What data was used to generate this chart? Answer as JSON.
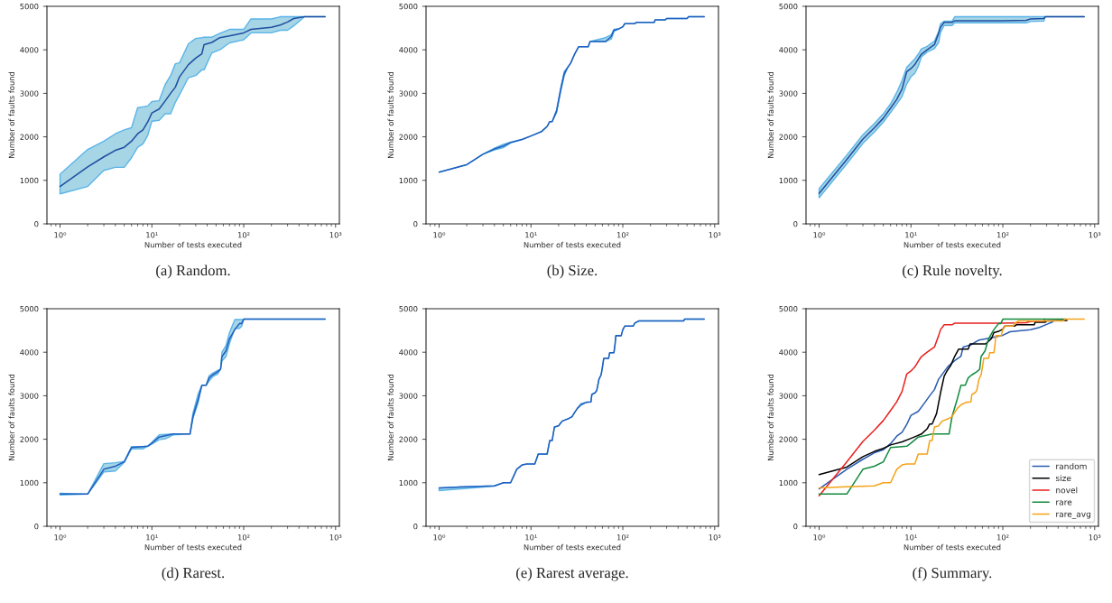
{
  "chart_data": [
    {
      "type": "line",
      "xlabel": "Number of tests executed",
      "ylabel": "Number of faults found",
      "log": "x",
      "xlim": [
        0.72,
        1100
      ],
      "ylim": [
        0,
        5000
      ],
      "xticks": [
        {
          "value": 1,
          "label": "10⁰"
        },
        {
          "value": 10,
          "label": "10¹"
        },
        {
          "value": 100,
          "label": "10²"
        },
        {
          "value": 1000,
          "label": "10³"
        }
      ],
      "yticks": [
        0,
        1000,
        2000,
        3000,
        4000,
        5000
      ],
      "annotations": [
        "(a) Random."
      ],
      "series": [
        {
          "color": "#1f4ea0",
          "x": [
            1,
            2,
            3,
            4,
            5,
            6,
            7,
            8,
            9,
            10,
            12,
            14,
            16,
            18,
            20,
            25,
            30,
            35,
            37,
            45,
            55,
            70,
            100,
            120,
            200,
            250,
            300,
            350,
            460,
            770
          ],
          "values": [
            860,
            1310,
            1540,
            1690,
            1760,
            1900,
            2070,
            2160,
            2340,
            2550,
            2640,
            2830,
            3000,
            3140,
            3380,
            3660,
            3810,
            3910,
            4120,
            4170,
            4280,
            4320,
            4390,
            4470,
            4520,
            4570,
            4640,
            4720,
            4760,
            4760
          ],
          "lower": [
            690,
            860,
            1230,
            1300,
            1300,
            1520,
            1760,
            1840,
            2030,
            2360,
            2380,
            2530,
            2530,
            2790,
            2970,
            3360,
            3410,
            3540,
            3540,
            3930,
            4000,
            4160,
            4230,
            4390,
            4390,
            4450,
            4450,
            4550,
            4760,
            4760
          ],
          "upper": [
            1140,
            1710,
            1900,
            2070,
            2160,
            2210,
            2670,
            2690,
            2710,
            2810,
            2830,
            3210,
            3410,
            3680,
            3700,
            4140,
            4260,
            4280,
            4290,
            4290,
            4380,
            4470,
            4470,
            4710,
            4710,
            4760,
            4760,
            4760,
            4760,
            4760
          ]
        }
      ]
    },
    {
      "type": "line",
      "xlabel": "Number of tests executed",
      "ylabel": "Number of faults found",
      "log": "x",
      "xlim": [
        0.72,
        1100
      ],
      "ylim": [
        0,
        5000
      ],
      "xticks": [
        {
          "value": 1,
          "label": "10⁰"
        },
        {
          "value": 10,
          "label": "10¹"
        },
        {
          "value": 100,
          "label": "10²"
        },
        {
          "value": 1000,
          "label": "10³"
        }
      ],
      "yticks": [
        0,
        1000,
        2000,
        3000,
        4000,
        5000
      ],
      "annotations": [
        "(b) Size."
      ],
      "series": [
        {
          "color": "#1f5fbf",
          "x": [
            1,
            2,
            3,
            4,
            5,
            6,
            8,
            10,
            13,
            15,
            16,
            17,
            19,
            21,
            23,
            25,
            27,
            30,
            33,
            42,
            44,
            65,
            75,
            80,
            90,
            100,
            105,
            135,
            140,
            220,
            225,
            290,
            300,
            500,
            520,
            770
          ],
          "values": [
            1190,
            1360,
            1600,
            1720,
            1790,
            1870,
            1940,
            2020,
            2120,
            2240,
            2350,
            2350,
            2590,
            3070,
            3450,
            3590,
            3690,
            3910,
            4070,
            4070,
            4190,
            4190,
            4310,
            4450,
            4480,
            4530,
            4600,
            4600,
            4630,
            4630,
            4690,
            4690,
            4720,
            4720,
            4760,
            4760
          ],
          "lower": [
            1190,
            1360,
            1600,
            1700,
            1750,
            1860,
            1940,
            2020,
            2120,
            2240,
            2350,
            2350,
            2560,
            3030,
            3400,
            3590,
            3690,
            3910,
            4070,
            4070,
            4190,
            4190,
            4250,
            4420,
            4480,
            4530,
            4600,
            4600,
            4630,
            4630,
            4690,
            4690,
            4720,
            4720,
            4760,
            4760
          ],
          "upper": [
            1190,
            1360,
            1600,
            1740,
            1830,
            1880,
            1940,
            2020,
            2120,
            2240,
            2350,
            2350,
            2620,
            3110,
            3500,
            3590,
            3690,
            3910,
            4070,
            4070,
            4190,
            4280,
            4350,
            4470,
            4480,
            4530,
            4600,
            4600,
            4630,
            4630,
            4690,
            4690,
            4720,
            4720,
            4760,
            4760
          ]
        }
      ]
    },
    {
      "type": "line",
      "xlabel": "Number of tests executed",
      "ylabel": "Number of faults found",
      "log": "x",
      "xlim": [
        0.72,
        1100
      ],
      "ylim": [
        0,
        5000
      ],
      "xticks": [
        {
          "value": 1,
          "label": "10⁰"
        },
        {
          "value": 10,
          "label": "10¹"
        },
        {
          "value": 100,
          "label": "10²"
        },
        {
          "value": 1000,
          "label": "10³"
        }
      ],
      "yticks": [
        0,
        1000,
        2000,
        3000,
        4000,
        5000
      ],
      "annotations": [
        "(c) Rule novelty."
      ],
      "series": [
        {
          "color": "#1f4ea0",
          "x": [
            1,
            2,
            3,
            4,
            5,
            6,
            7,
            8,
            9,
            10,
            11,
            12,
            13,
            15,
            18,
            20,
            21,
            23,
            28,
            30,
            100,
            180,
            200,
            280,
            290,
            770
          ],
          "values": [
            700,
            1480,
            1950,
            2210,
            2430,
            2660,
            2860,
            3100,
            3500,
            3570,
            3660,
            3790,
            3900,
            4000,
            4120,
            4380,
            4520,
            4630,
            4630,
            4670,
            4670,
            4680,
            4710,
            4720,
            4760,
            4760
          ],
          "lower": [
            600,
            1380,
            1850,
            2110,
            2340,
            2560,
            2750,
            2930,
            3220,
            3380,
            3460,
            3620,
            3840,
            3950,
            4030,
            4170,
            4400,
            4560,
            4560,
            4620,
            4620,
            4620,
            4650,
            4660,
            4760,
            4760
          ],
          "upper": [
            810,
            1580,
            2050,
            2310,
            2530,
            2760,
            3020,
            3300,
            3600,
            3700,
            3790,
            3900,
            4020,
            4080,
            4200,
            4420,
            4600,
            4660,
            4660,
            4760,
            4760,
            4760,
            4760,
            4760,
            4760,
            4760
          ]
        }
      ]
    },
    {
      "type": "line",
      "xlabel": "Number of tests executed",
      "ylabel": "Number of faults found",
      "log": "x",
      "xlim": [
        0.72,
        1100
      ],
      "ylim": [
        0,
        5000
      ],
      "xticks": [
        {
          "value": 1,
          "label": "10⁰"
        },
        {
          "value": 10,
          "label": "10¹"
        },
        {
          "value": 100,
          "label": "10²"
        },
        {
          "value": 1000,
          "label": "10³"
        }
      ],
      "yticks": [
        0,
        1000,
        2000,
        3000,
        4000,
        5000
      ],
      "annotations": [
        "(d) Rarest."
      ],
      "series": [
        {
          "color": "#1f5fbf",
          "x": [
            1,
            2,
            3,
            4,
            5,
            6,
            8,
            9,
            10,
            12,
            14,
            17,
            26,
            28,
            32,
            35,
            39,
            42,
            46,
            52,
            56,
            58,
            64,
            70,
            80,
            90,
            95,
            100,
            770
          ],
          "values": [
            740,
            740,
            1310,
            1380,
            1480,
            1810,
            1830,
            1840,
            1910,
            2050,
            2080,
            2120,
            2120,
            2520,
            2930,
            3240,
            3240,
            3410,
            3480,
            3550,
            3610,
            3900,
            4030,
            4310,
            4520,
            4660,
            4660,
            4760,
            4760
          ],
          "lower": [
            720,
            740,
            1250,
            1270,
            1470,
            1780,
            1780,
            1840,
            1890,
            1990,
            2010,
            2100,
            2120,
            2480,
            2850,
            3240,
            3240,
            3340,
            3440,
            3500,
            3610,
            3800,
            3900,
            4200,
            4550,
            4550,
            4600,
            4760,
            4760
          ],
          "upper": [
            760,
            740,
            1440,
            1460,
            1490,
            1830,
            1830,
            1840,
            1930,
            2100,
            2110,
            2120,
            2120,
            2600,
            3050,
            3240,
            3240,
            3460,
            3520,
            3580,
            3610,
            4000,
            4150,
            4450,
            4750,
            4750,
            4750,
            4760,
            4760
          ]
        }
      ]
    },
    {
      "type": "line",
      "xlabel": "Number of tests executed",
      "ylabel": "Number of faults found",
      "log": "x",
      "xlim": [
        0.72,
        1100
      ],
      "ylim": [
        0,
        5000
      ],
      "xticks": [
        {
          "value": 1,
          "label": "10⁰"
        },
        {
          "value": 10,
          "label": "10¹"
        },
        {
          "value": 100,
          "label": "10²"
        },
        {
          "value": 1000,
          "label": "10³"
        }
      ],
      "yticks": [
        0,
        1000,
        2000,
        3000,
        4000,
        5000
      ],
      "annotations": [
        "(e) Rarest average."
      ],
      "series": [
        {
          "color": "#1f5fbf",
          "x": [
            1,
            2,
            4,
            5,
            6,
            7,
            8,
            9,
            11,
            12,
            15,
            16,
            17,
            18,
            20,
            21,
            22,
            26,
            28,
            30,
            32,
            35,
            40,
            45,
            46,
            50,
            52,
            55,
            58,
            60,
            62,
            70,
            72,
            80,
            82,
            84,
            96,
            100,
            105,
            130,
            135,
            150,
            460,
            470,
            770
          ],
          "values": [
            880,
            910,
            930,
            1000,
            1000,
            1310,
            1410,
            1430,
            1430,
            1660,
            1660,
            1970,
            1970,
            2280,
            2310,
            2370,
            2420,
            2480,
            2520,
            2620,
            2710,
            2790,
            2850,
            2860,
            3030,
            3070,
            3120,
            3380,
            3480,
            3660,
            3860,
            3860,
            3990,
            3990,
            4150,
            4380,
            4380,
            4520,
            4600,
            4600,
            4670,
            4720,
            4720,
            4760,
            4760
          ],
          "lower": [
            820,
            870,
            920,
            1000,
            1000,
            1310,
            1410,
            1430,
            1430,
            1660,
            1660,
            1970,
            1970,
            2280,
            2310,
            2370,
            2420,
            2480,
            2520,
            2620,
            2710,
            2790,
            2850,
            2860,
            3030,
            3070,
            3120,
            3380,
            3480,
            3660,
            3860,
            3860,
            3990,
            3990,
            4150,
            4380,
            4380,
            4520,
            4600,
            4600,
            4670,
            4720,
            4720,
            4760,
            4760
          ],
          "upper": [
            880,
            910,
            930,
            1000,
            1000,
            1310,
            1410,
            1430,
            1430,
            1660,
            1660,
            1970,
            1970,
            2280,
            2310,
            2370,
            2420,
            2480,
            2520,
            2620,
            2710,
            2820,
            2850,
            2860,
            3030,
            3070,
            3120,
            3380,
            3480,
            3660,
            3860,
            3860,
            3990,
            3990,
            4150,
            4380,
            4380,
            4520,
            4600,
            4600,
            4670,
            4720,
            4720,
            4760,
            4760
          ]
        }
      ]
    },
    {
      "type": "line",
      "xlabel": "Number of tests executed",
      "ylabel": "Number of faults found",
      "log": "x",
      "xlim": [
        0.72,
        1100
      ],
      "ylim": [
        0,
        5000
      ],
      "xticks": [
        {
          "value": 1,
          "label": "10⁰"
        },
        {
          "value": 10,
          "label": "10¹"
        },
        {
          "value": 100,
          "label": "10²"
        },
        {
          "value": 1000,
          "label": "10³"
        }
      ],
      "yticks": [
        0,
        1000,
        2000,
        3000,
        4000,
        5000
      ],
      "annotations": [
        "(f) Summary."
      ],
      "legend": "bottom right",
      "series": [
        {
          "name": "random",
          "color": "#2a5cb0",
          "x": [
            1,
            2,
            3,
            4,
            5,
            6,
            7,
            8,
            9,
            10,
            12,
            14,
            16,
            18,
            20,
            25,
            30,
            35,
            37,
            45,
            55,
            70,
            100,
            120,
            200,
            250,
            300,
            350
          ],
          "values": [
            860,
            1310,
            1540,
            1690,
            1760,
            1900,
            2070,
            2160,
            2340,
            2550,
            2640,
            2830,
            3000,
            3140,
            3380,
            3660,
            3810,
            3910,
            4120,
            4170,
            4280,
            4320,
            4390,
            4470,
            4520,
            4570,
            4640,
            4700
          ]
        },
        {
          "name": "size",
          "color": "#000000",
          "x": [
            1,
            2,
            3,
            4,
            5,
            6,
            8,
            10,
            13,
            15,
            16,
            17,
            19,
            21,
            23,
            25,
            27,
            30,
            33,
            42,
            44,
            65,
            75,
            80,
            90,
            100,
            105,
            135,
            140,
            220,
            225,
            290,
            300,
            500
          ],
          "values": [
            1190,
            1360,
            1600,
            1720,
            1790,
            1870,
            1940,
            2020,
            2120,
            2240,
            2350,
            2350,
            2590,
            3070,
            3450,
            3590,
            3690,
            3910,
            4070,
            4070,
            4190,
            4190,
            4310,
            4450,
            4480,
            4530,
            4600,
            4600,
            4630,
            4630,
            4690,
            4690,
            4720,
            4730
          ]
        },
        {
          "name": "novel",
          "color": "#e8211f",
          "x": [
            1,
            2,
            3,
            4,
            5,
            6,
            7,
            8,
            9,
            10,
            11,
            12,
            13,
            15,
            18,
            20,
            21,
            23,
            28,
            30,
            100,
            180,
            200,
            280,
            290
          ],
          "values": [
            700,
            1480,
            1950,
            2210,
            2430,
            2660,
            2860,
            3100,
            3500,
            3570,
            3660,
            3790,
            3900,
            4000,
            4120,
            4380,
            4520,
            4630,
            4630,
            4670,
            4670,
            4680,
            4710,
            4720,
            4760
          ]
        },
        {
          "name": "rare",
          "color": "#138a3e",
          "x": [
            1,
            2,
            3,
            4,
            5,
            6,
            8,
            9,
            10,
            12,
            14,
            17,
            26,
            28,
            32,
            35,
            39,
            42,
            46,
            52,
            56,
            58,
            64,
            70,
            80,
            90,
            95,
            100,
            480
          ],
          "values": [
            740,
            740,
            1310,
            1380,
            1480,
            1810,
            1830,
            1840,
            1910,
            2050,
            2080,
            2120,
            2120,
            2520,
            2930,
            3240,
            3240,
            3410,
            3480,
            3550,
            3610,
            3900,
            4030,
            4310,
            4520,
            4660,
            4660,
            4760,
            4760
          ]
        },
        {
          "name": "rare_avg",
          "color": "#f5a31a",
          "x": [
            1,
            2,
            4,
            5,
            6,
            7,
            8,
            9,
            11,
            12,
            15,
            16,
            17,
            18,
            20,
            21,
            22,
            26,
            28,
            30,
            32,
            35,
            40,
            45,
            46,
            50,
            52,
            55,
            58,
            60,
            62,
            70,
            72,
            80,
            82,
            84,
            96,
            100,
            105,
            130,
            135,
            150,
            460,
            470,
            770
          ],
          "values": [
            880,
            910,
            930,
            1000,
            1000,
            1310,
            1410,
            1430,
            1430,
            1660,
            1660,
            1970,
            1970,
            2280,
            2310,
            2370,
            2420,
            2480,
            2520,
            2620,
            2710,
            2790,
            2850,
            2860,
            3030,
            3070,
            3120,
            3380,
            3480,
            3660,
            3860,
            3860,
            3990,
            3990,
            4150,
            4380,
            4380,
            4520,
            4600,
            4600,
            4670,
            4720,
            4720,
            4760,
            4760
          ]
        }
      ]
    }
  ]
}
